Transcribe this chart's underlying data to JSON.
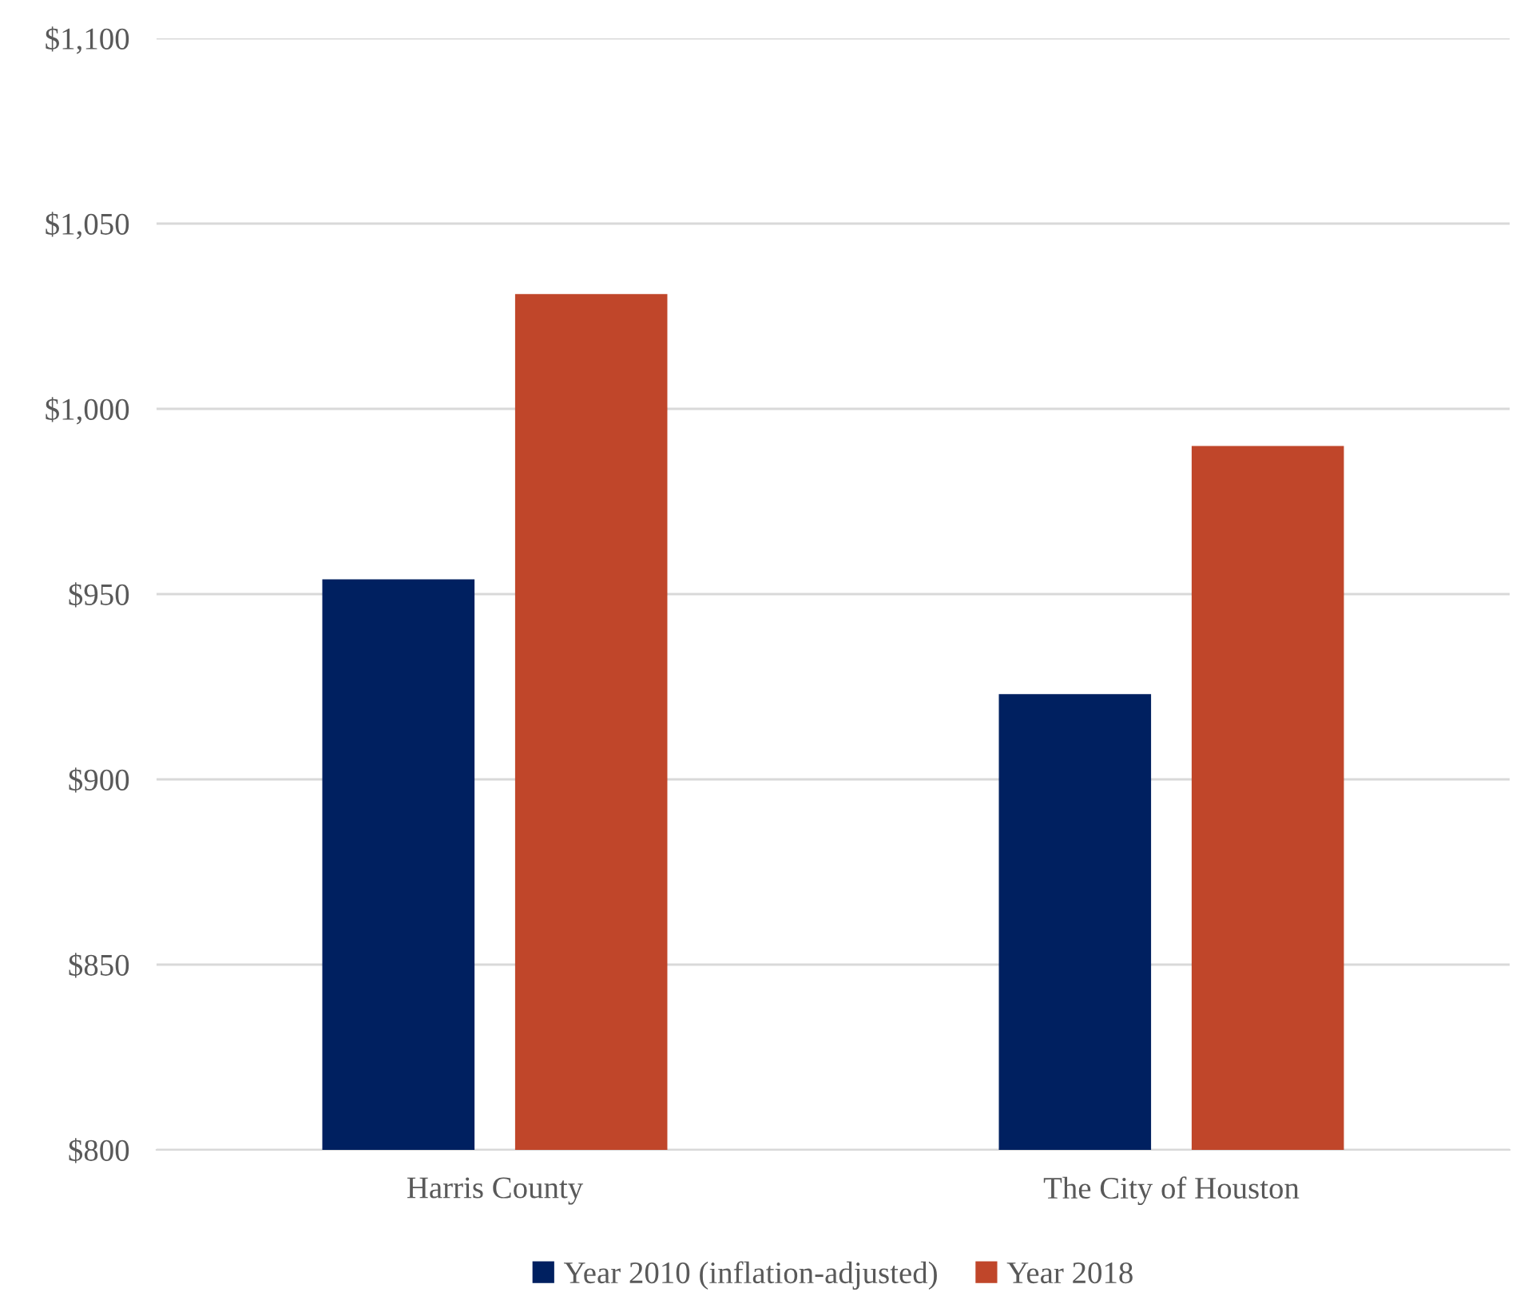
{
  "chart_data": {
    "type": "bar",
    "categories": [
      "Harris County",
      "The City of Houston"
    ],
    "series": [
      {
        "name": "Year 2010 (inflation-adjusted)",
        "color": "#002060",
        "values": [
          954,
          923
        ]
      },
      {
        "name": "Year 2018",
        "color": "#c0462a",
        "values": [
          1031,
          990
        ]
      }
    ],
    "ylim": [
      800,
      1100
    ],
    "yticks": [
      {
        "value": 800,
        "label": "$800"
      },
      {
        "value": 850,
        "label": "$850"
      },
      {
        "value": 900,
        "label": "$900"
      },
      {
        "value": 950,
        "label": "$950"
      },
      {
        "value": 1000,
        "label": "$1,000"
      },
      {
        "value": 1050,
        "label": "$1,050"
      },
      {
        "value": 1100,
        "label": "$1,100"
      }
    ],
    "grid": "y",
    "legend": "bottom"
  }
}
